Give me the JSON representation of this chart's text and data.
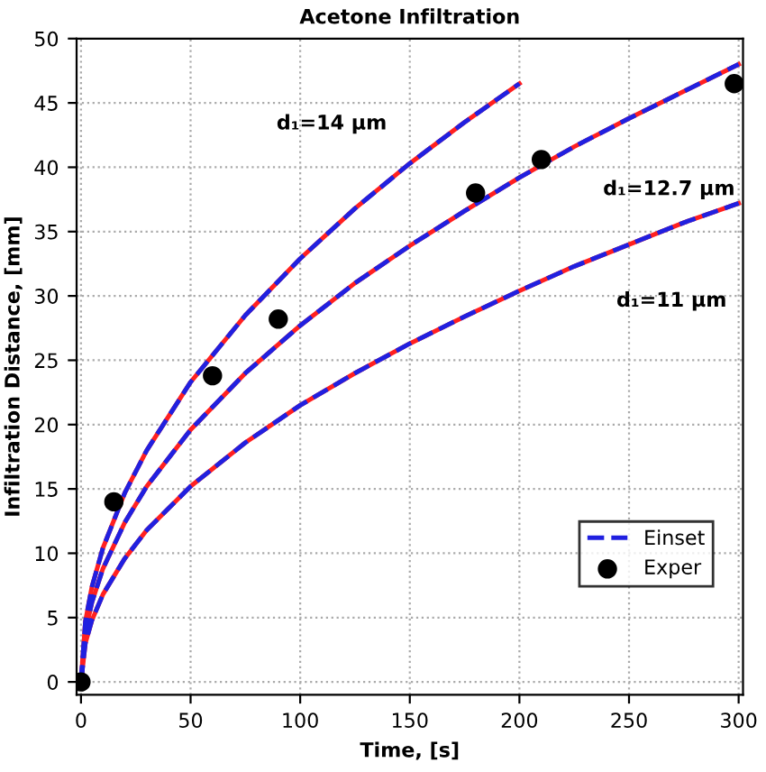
{
  "chart_data": {
    "type": "line",
    "title": "Acetone Infiltration",
    "xlabel": "Time, [s]",
    "ylabel": "Infiltration Distance, [mm]",
    "xlim": [
      -2,
      302
    ],
    "ylim": [
      -1,
      50
    ],
    "xticks": [
      0,
      50,
      100,
      150,
      200,
      250,
      300
    ],
    "yticks": [
      0,
      5,
      10,
      15,
      20,
      25,
      30,
      35,
      40,
      45,
      50
    ],
    "grid": true,
    "legend": "lower right",
    "marker": "none",
    "series": [
      {
        "color": "#ff2020",
        "line_style": "solid",
        "x": [
          0,
          2,
          5,
          10,
          20,
          30,
          50,
          75,
          100,
          125,
          150,
          175,
          200
        ],
        "values": [
          0,
          4.7,
          7.4,
          10.4,
          14.7,
          18.0,
          23.3,
          28.5,
          32.9,
          36.8,
          40.3,
          43.5,
          46.5
        ]
      },
      {
        "color": "#ff2020",
        "line_style": "solid",
        "x": [
          0,
          2,
          5,
          10,
          20,
          30,
          50,
          75,
          100,
          125,
          150,
          175,
          200,
          225,
          250,
          275,
          300
        ],
        "values": [
          0,
          3.9,
          6.2,
          8.8,
          12.4,
          15.2,
          19.6,
          24.0,
          27.7,
          31.0,
          33.9,
          36.6,
          39.2,
          41.6,
          43.8,
          45.9,
          48.0
        ]
      },
      {
        "color": "#ff2020",
        "line_style": "solid",
        "x": [
          0,
          2,
          5,
          10,
          20,
          30,
          50,
          75,
          100,
          125,
          150,
          175,
          200,
          225,
          250,
          275,
          300
        ],
        "values": [
          0,
          3.0,
          4.8,
          6.8,
          9.6,
          11.8,
          15.2,
          18.6,
          21.5,
          24.0,
          26.3,
          28.4,
          30.4,
          32.3,
          34.0,
          35.7,
          37.2
        ]
      },
      {
        "name": "Einset",
        "color": "#2020e0",
        "line_style": "dashed",
        "x": [
          0,
          2,
          5,
          10,
          20,
          30,
          50,
          75,
          100,
          125,
          150,
          175,
          200
        ],
        "values": [
          0,
          4.7,
          7.4,
          10.4,
          14.7,
          18.0,
          23.3,
          28.5,
          32.9,
          36.8,
          40.3,
          43.5,
          46.5
        ]
      },
      {
        "color": "#2020e0",
        "line_style": "dashed",
        "x": [
          0,
          2,
          5,
          10,
          20,
          30,
          50,
          75,
          100,
          125,
          150,
          175,
          200,
          225,
          250,
          275,
          300
        ],
        "values": [
          0,
          3.9,
          6.2,
          8.8,
          12.4,
          15.2,
          19.6,
          24.0,
          27.7,
          31.0,
          33.9,
          36.6,
          39.2,
          41.6,
          43.8,
          45.9,
          48.0
        ]
      },
      {
        "color": "#2020e0",
        "line_style": "dashed",
        "x": [
          0,
          2,
          5,
          10,
          20,
          30,
          50,
          75,
          100,
          125,
          150,
          175,
          200,
          225,
          250,
          275,
          300
        ],
        "values": [
          0,
          3.0,
          4.8,
          6.8,
          9.6,
          11.8,
          15.2,
          18.6,
          21.5,
          24.0,
          26.3,
          28.4,
          30.4,
          32.3,
          34.0,
          35.7,
          37.2
        ]
      },
      {
        "name": "Exper",
        "type": "scatter",
        "marker": "circle",
        "color": "#000000",
        "x": [
          0,
          15,
          60,
          90,
          180,
          210,
          298
        ],
        "values": [
          0,
          14,
          23.8,
          28.2,
          38,
          40.6,
          46.5
        ]
      }
    ],
    "annotations": [
      "d₁=14 μm",
      "d₁=12.7 μm",
      "d₁=11 μm"
    ]
  }
}
